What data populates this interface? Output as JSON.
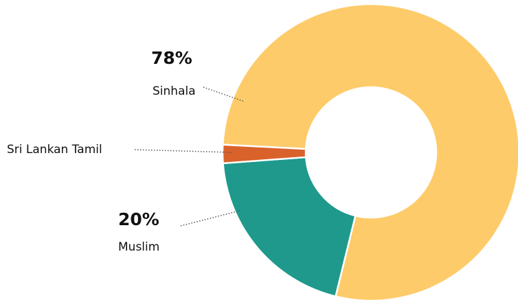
{
  "chart_data": {
    "type": "donut",
    "categories": [
      "Sinhala",
      "Muslim",
      "Sri Lankan Tamil"
    ],
    "values": [
      78,
      20,
      2
    ],
    "value_labels": [
      "78%",
      "20%",
      null
    ],
    "colors": [
      "#fecb6a",
      "#1e998c",
      "#d9622b"
    ]
  }
}
